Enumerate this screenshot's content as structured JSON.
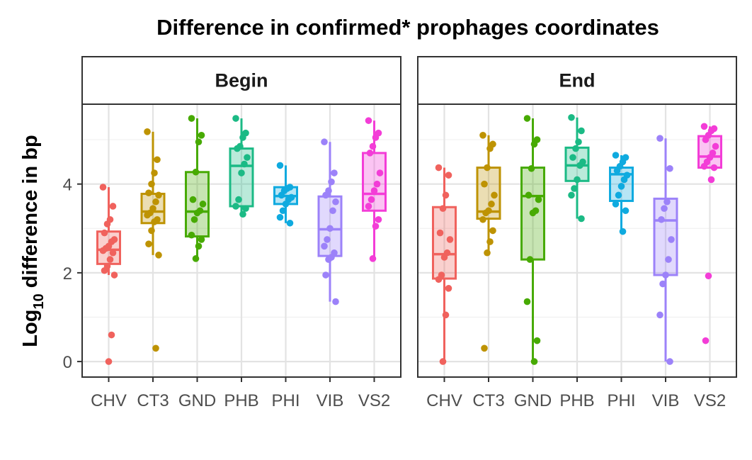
{
  "chart_data": {
    "type": "box",
    "title": "Difference in confirmed* prophages coordinates",
    "ylabel": {
      "base": "Log",
      "subscript": "10",
      "rest": " difference in bp"
    },
    "xlabel": "",
    "ylim": [
      -0.35,
      5.8
    ],
    "yticks": [
      0,
      2,
      4
    ],
    "grid": true,
    "legend": "none",
    "categories": [
      "CHV",
      "CT3",
      "GND",
      "PHB",
      "PHI",
      "VIB",
      "VS2"
    ],
    "colors": {
      "CHV": "#F0625D",
      "CT3": "#BE9303",
      "GND": "#47AA02",
      "PHB": "#1BBA85",
      "PHI": "#0FAADF",
      "VIB": "#9C82F9",
      "VS2": "#F33DD7"
    },
    "panels": [
      {
        "strip": "Begin",
        "boxes": [
          {
            "category": "CHV",
            "min": 1.95,
            "q1": 2.2,
            "median": 2.52,
            "q3": 2.93,
            "max": 3.93,
            "points": [
              3.93,
              3.5,
              3.2,
              3.1,
              2.9,
              2.75,
              2.7,
              2.6,
              2.55,
              2.5,
              2.45,
              2.3,
              2.15,
              2.05,
              1.95,
              0.6,
              0.0
            ]
          },
          {
            "category": "CT3",
            "min": 2.4,
            "q1": 3.12,
            "median": 3.38,
            "q3": 3.78,
            "max": 5.18,
            "points": [
              5.18,
              4.55,
              4.25,
              4.0,
              3.8,
              3.75,
              3.6,
              3.45,
              3.35,
              3.3,
              3.2,
              3.15,
              2.95,
              2.65,
              2.4,
              0.3
            ]
          },
          {
            "category": "GND",
            "min": 2.32,
            "q1": 2.82,
            "median": 3.38,
            "q3": 4.27,
            "max": 5.48,
            "points": [
              5.48,
              5.1,
              4.95,
              4.27,
              3.65,
              3.55,
              3.4,
              3.35,
              3.2,
              2.85,
              2.75,
              2.6,
              2.32
            ]
          },
          {
            "category": "PHB",
            "min": 3.32,
            "q1": 3.5,
            "median": 4.41,
            "q3": 4.8,
            "max": 5.48,
            "points": [
              5.48,
              5.15,
              5.05,
              4.85,
              4.8,
              4.6,
              4.45,
              4.25,
              3.65,
              3.5,
              3.45,
              3.32
            ]
          },
          {
            "category": "PHI",
            "min": 3.12,
            "q1": 3.55,
            "median": 3.73,
            "q3": 3.93,
            "max": 4.42,
            "points": [
              4.42,
              3.93,
              3.9,
              3.85,
              3.75,
              3.7,
              3.65,
              3.55,
              3.4,
              3.25,
              3.12
            ]
          },
          {
            "category": "VIB",
            "min": 1.35,
            "q1": 2.38,
            "median": 2.98,
            "q3": 3.72,
            "max": 4.95,
            "points": [
              4.95,
              4.25,
              4.05,
              3.85,
              3.75,
              3.6,
              3.4,
              3.0,
              2.75,
              2.6,
              2.45,
              2.35,
              2.3,
              1.95,
              1.35
            ]
          },
          {
            "category": "VS2",
            "min": 2.32,
            "q1": 3.4,
            "median": 3.78,
            "q3": 4.7,
            "max": 5.43,
            "points": [
              5.43,
              5.15,
              5.05,
              4.85,
              4.7,
              4.25,
              4.0,
              3.85,
              3.65,
              3.5,
              3.2,
              3.05,
              2.32
            ]
          }
        ]
      },
      {
        "strip": "End",
        "boxes": [
          {
            "category": "CHV",
            "min": 0.0,
            "q1": 1.87,
            "median": 2.42,
            "q3": 3.48,
            "max": 4.37,
            "points": [
              4.37,
              4.2,
              3.75,
              3.45,
              2.9,
              2.75,
              2.45,
              2.35,
              1.95,
              1.85,
              1.65,
              1.05,
              0.0
            ]
          },
          {
            "category": "CT3",
            "min": 2.45,
            "q1": 3.22,
            "median": 3.38,
            "q3": 4.37,
            "max": 5.1,
            "points": [
              5.1,
              4.9,
              4.8,
              4.37,
              4.0,
              3.75,
              3.55,
              3.4,
              3.35,
              3.2,
              2.95,
              2.7,
              2.45,
              0.3
            ]
          },
          {
            "category": "GND",
            "min": 0.0,
            "q1": 2.3,
            "median": 3.73,
            "q3": 4.37,
            "max": 5.48,
            "points": [
              5.48,
              5.0,
              4.9,
              4.35,
              3.75,
              3.65,
              3.4,
              3.35,
              2.3,
              1.35,
              0.47,
              0.0
            ]
          },
          {
            "category": "PHB",
            "min": 3.22,
            "q1": 4.07,
            "median": 4.42,
            "q3": 4.82,
            "max": 5.5,
            "points": [
              5.5,
              5.2,
              4.95,
              4.8,
              4.6,
              4.5,
              4.42,
              4.1,
              3.9,
              3.75,
              3.22
            ]
          },
          {
            "category": "PHI",
            "min": 2.93,
            "q1": 3.62,
            "median": 4.22,
            "q3": 4.37,
            "max": 4.65,
            "points": [
              4.65,
              4.6,
              4.5,
              4.4,
              4.3,
              4.2,
              4.1,
              3.95,
              3.75,
              3.55,
              3.4,
              2.93
            ]
          },
          {
            "category": "VIB",
            "min": 0.0,
            "q1": 1.95,
            "median": 3.18,
            "q3": 3.67,
            "max": 5.03,
            "points": [
              5.03,
              4.35,
              3.6,
              3.45,
              3.2,
              2.75,
              2.3,
              1.95,
              1.75,
              1.05,
              0.0
            ]
          },
          {
            "category": "VS2",
            "min": 4.37,
            "q1": 4.37,
            "median": 4.62,
            "q3": 5.08,
            "max": 5.3,
            "points": [
              5.3,
              5.25,
              5.2,
              5.1,
              5.0,
              4.85,
              4.7,
              4.6,
              4.5,
              4.4,
              4.37,
              4.1,
              1.93,
              0.47
            ]
          }
        ]
      }
    ]
  }
}
